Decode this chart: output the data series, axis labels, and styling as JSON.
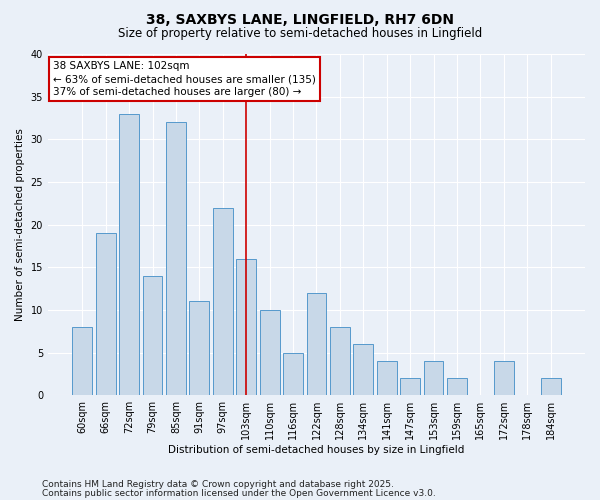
{
  "title": "38, SAXBYS LANE, LINGFIELD, RH7 6DN",
  "subtitle": "Size of property relative to semi-detached houses in Lingfield",
  "xlabel": "Distribution of semi-detached houses by size in Lingfield",
  "ylabel": "Number of semi-detached properties",
  "categories": [
    "60sqm",
    "66sqm",
    "72sqm",
    "79sqm",
    "85sqm",
    "91sqm",
    "97sqm",
    "103sqm",
    "110sqm",
    "116sqm",
    "122sqm",
    "128sqm",
    "134sqm",
    "141sqm",
    "147sqm",
    "153sqm",
    "159sqm",
    "165sqm",
    "172sqm",
    "178sqm",
    "184sqm"
  ],
  "values": [
    8,
    19,
    33,
    14,
    32,
    11,
    22,
    16,
    10,
    5,
    12,
    8,
    6,
    4,
    2,
    4,
    2,
    0,
    4,
    0,
    2
  ],
  "bar_color": "#c8d8e8",
  "bar_edge_color": "#5599cc",
  "highlight_index": 7,
  "ylim": [
    0,
    40
  ],
  "yticks": [
    0,
    5,
    10,
    15,
    20,
    25,
    30,
    35,
    40
  ],
  "annotation_title": "38 SAXBYS LANE: 102sqm",
  "annotation_line1": "← 63% of semi-detached houses are smaller (135)",
  "annotation_line2": "37% of semi-detached houses are larger (80) →",
  "annotation_box_color": "#ffffff",
  "annotation_box_edge": "#cc0000",
  "vline_color": "#cc0000",
  "background_color": "#eaf0f8",
  "grid_color": "#ffffff",
  "footnote1": "Contains HM Land Registry data © Crown copyright and database right 2025.",
  "footnote2": "Contains public sector information licensed under the Open Government Licence v3.0.",
  "title_fontsize": 10,
  "subtitle_fontsize": 8.5,
  "axis_label_fontsize": 7.5,
  "tick_fontsize": 7,
  "annotation_fontsize": 7.5,
  "footnote_fontsize": 6.5
}
